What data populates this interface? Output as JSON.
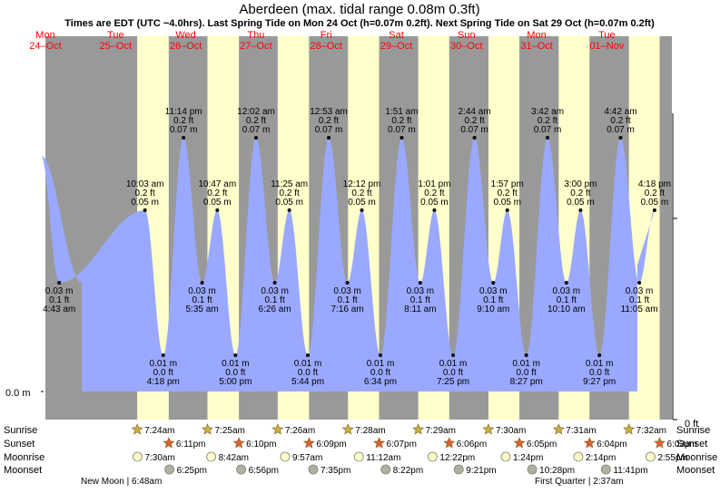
{
  "title": "Aberdeen (max. tidal range 0.08m 0.3ft)",
  "subtitle": "Times are EDT (UTC −4.0hrs). Last Spring Tide on Mon 24 Oct (h=0.07m 0.2ft). Next Spring Tide on Sat 29 Oct (h=0.07m 0.2ft)",
  "colors": {
    "night": "#999999",
    "day": "#ffffcc",
    "water": "#9aa9ff",
    "header_red": "#ff0000",
    "sun_star": "#c8b040",
    "sunset_star": "#e06030",
    "moonrise": "#ffffcc",
    "moonset": "#b0b0a0"
  },
  "axis": {
    "left_label": "0.0 m",
    "right_label": "0 ft"
  },
  "days": [
    {
      "weekday": "Mon",
      "date": "24–Oct"
    },
    {
      "weekday": "Tue",
      "date": "25–Oct"
    },
    {
      "weekday": "Wed",
      "date": "26–Oct"
    },
    {
      "weekday": "Thu",
      "date": "27–Oct"
    },
    {
      "weekday": "Fri",
      "date": "28–Oct"
    },
    {
      "weekday": "Sat",
      "date": "29–Oct"
    },
    {
      "weekday": "Sun",
      "date": "30–Oct"
    },
    {
      "weekday": "Mon",
      "date": "31–Oct"
    },
    {
      "weekday": "Tue",
      "date": "01–Nov"
    }
  ],
  "chart_data": {
    "type": "area",
    "title": "Aberdeen (max. tidal range 0.08m 0.3ft)",
    "ylabel": "",
    "ylim": [
      0,
      0.08
    ],
    "y_units": "m",
    "tides": [
      {
        "day": 0,
        "time": "4:43 am",
        "m": 0.03,
        "ft": 0.1,
        "type": "low"
      },
      {
        "day": 1,
        "time": "10:03 am",
        "m": 0.05,
        "ft": 0.2,
        "type": "high"
      },
      {
        "day": 1,
        "time": "4:18 pm",
        "m": 0.01,
        "ft": 0.0,
        "type": "low"
      },
      {
        "day": 1,
        "time": "11:14 pm",
        "m": 0.07,
        "ft": 0.2,
        "type": "high"
      },
      {
        "day": 2,
        "time": "5:35 am",
        "m": 0.03,
        "ft": 0.1,
        "type": "low"
      },
      {
        "day": 2,
        "time": "10:47 am",
        "m": 0.05,
        "ft": 0.2,
        "type": "high"
      },
      {
        "day": 2,
        "time": "5:00 pm",
        "m": 0.01,
        "ft": 0.0,
        "type": "low"
      },
      {
        "day": 3,
        "time": "12:02 am",
        "m": 0.07,
        "ft": 0.2,
        "type": "high"
      },
      {
        "day": 3,
        "time": "6:26 am",
        "m": 0.03,
        "ft": 0.1,
        "type": "low"
      },
      {
        "day": 3,
        "time": "11:25 am",
        "m": 0.05,
        "ft": 0.2,
        "type": "high"
      },
      {
        "day": 3,
        "time": "5:44 pm",
        "m": 0.01,
        "ft": 0.0,
        "type": "low"
      },
      {
        "day": 4,
        "time": "12:53 am",
        "m": 0.07,
        "ft": 0.2,
        "type": "high"
      },
      {
        "day": 4,
        "time": "7:16 am",
        "m": 0.03,
        "ft": 0.1,
        "type": "low"
      },
      {
        "day": 4,
        "time": "12:12 pm",
        "m": 0.05,
        "ft": 0.2,
        "type": "high"
      },
      {
        "day": 4,
        "time": "6:34 pm",
        "m": 0.01,
        "ft": 0.0,
        "type": "low"
      },
      {
        "day": 5,
        "time": "1:51 am",
        "m": 0.07,
        "ft": 0.2,
        "type": "high"
      },
      {
        "day": 5,
        "time": "8:11 am",
        "m": 0.03,
        "ft": 0.1,
        "type": "low"
      },
      {
        "day": 5,
        "time": "1:01 pm",
        "m": 0.05,
        "ft": 0.2,
        "type": "high"
      },
      {
        "day": 5,
        "time": "7:25 pm",
        "m": 0.01,
        "ft": 0.0,
        "type": "low"
      },
      {
        "day": 6,
        "time": "2:44 am",
        "m": 0.07,
        "ft": 0.2,
        "type": "high"
      },
      {
        "day": 6,
        "time": "9:10 am",
        "m": 0.03,
        "ft": 0.1,
        "type": "low"
      },
      {
        "day": 6,
        "time": "1:57 pm",
        "m": 0.05,
        "ft": 0.2,
        "type": "high"
      },
      {
        "day": 6,
        "time": "8:27 pm",
        "m": 0.01,
        "ft": 0.0,
        "type": "low"
      },
      {
        "day": 7,
        "time": "3:42 am",
        "m": 0.07,
        "ft": 0.2,
        "type": "high"
      },
      {
        "day": 7,
        "time": "10:10 am",
        "m": 0.03,
        "ft": 0.1,
        "type": "low"
      },
      {
        "day": 7,
        "time": "3:00 pm",
        "m": 0.05,
        "ft": 0.2,
        "type": "high"
      },
      {
        "day": 7,
        "time": "9:27 pm",
        "m": 0.01,
        "ft": 0.0,
        "type": "low"
      },
      {
        "day": 8,
        "time": "4:42 am",
        "m": 0.07,
        "ft": 0.2,
        "type": "high"
      },
      {
        "day": 8,
        "time": "11:05 am",
        "m": 0.03,
        "ft": 0.1,
        "type": "low"
      },
      {
        "day": 8,
        "time": "4:18 pm",
        "m": 0.05,
        "ft": 0.2,
        "type": "high"
      }
    ]
  },
  "astro": {
    "row_labels": [
      "Sunrise",
      "Sunset",
      "Moonrise",
      "Moonset"
    ],
    "sunrise": [
      {
        "day": 1,
        "time": "7:24am"
      },
      {
        "day": 2,
        "time": "7:25am"
      },
      {
        "day": 3,
        "time": "7:26am"
      },
      {
        "day": 4,
        "time": "7:28am"
      },
      {
        "day": 5,
        "time": "7:29am"
      },
      {
        "day": 6,
        "time": "7:30am"
      },
      {
        "day": 7,
        "time": "7:31am"
      },
      {
        "day": 8,
        "time": "7:32am"
      }
    ],
    "sunset": [
      {
        "day": 1,
        "time": "6:11pm"
      },
      {
        "day": 2,
        "time": "6:10pm"
      },
      {
        "day": 3,
        "time": "6:09pm"
      },
      {
        "day": 4,
        "time": "6:07pm"
      },
      {
        "day": 5,
        "time": "6:06pm"
      },
      {
        "day": 6,
        "time": "6:05pm"
      },
      {
        "day": 7,
        "time": "6:04pm"
      },
      {
        "day": 8,
        "time": "6:03pm"
      }
    ],
    "moonrise": [
      {
        "day": 1,
        "time": "7:30am"
      },
      {
        "day": 2,
        "time": "8:42am"
      },
      {
        "day": 3,
        "time": "9:57am"
      },
      {
        "day": 4,
        "time": "11:12am"
      },
      {
        "day": 5,
        "time": "12:22pm"
      },
      {
        "day": 6,
        "time": "1:24pm"
      },
      {
        "day": 7,
        "time": "2:14pm"
      },
      {
        "day": 8,
        "time": "2:55pm"
      }
    ],
    "moonset": [
      {
        "day": 1,
        "time": "6:25pm"
      },
      {
        "day": 2,
        "time": "6:56pm"
      },
      {
        "day": 3,
        "time": "7:35pm"
      },
      {
        "day": 4,
        "time": "8:22pm"
      },
      {
        "day": 5,
        "time": "9:21pm"
      },
      {
        "day": 6,
        "time": "10:28pm"
      },
      {
        "day": 7,
        "time": "11:41pm"
      }
    ]
  },
  "phases": {
    "new_moon": "New Moon | 6:48am",
    "first_quarter": "First Quarter | 2:37am"
  }
}
